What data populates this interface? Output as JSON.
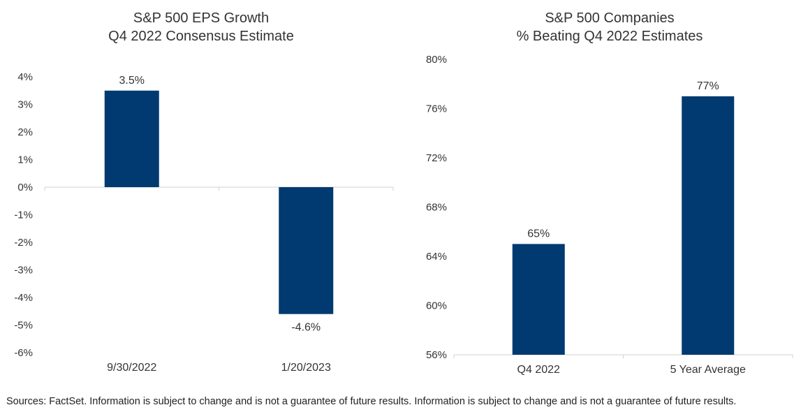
{
  "source_note": "Sources: FactSet. Information is subject to change and is not a guarantee of future results. Information is subject to change and is not a guarantee of future results.",
  "colors": {
    "bar": "#003a70",
    "axis": "#d0d0d0",
    "text": "#333333"
  },
  "chart_data": [
    {
      "type": "bar",
      "title": "S&P 500 EPS Growth",
      "subtitle": "Q4 2022 Consensus Estimate",
      "categories": [
        "9/30/2022",
        "1/20/2023"
      ],
      "values": [
        3.5,
        -4.6
      ],
      "value_labels": [
        "3.5%",
        "-4.6%"
      ],
      "ylim": [
        -6,
        4
      ],
      "yticks": [
        4,
        3,
        2,
        1,
        0,
        -1,
        -2,
        -3,
        -4,
        -5,
        -6
      ],
      "ytick_labels": [
        "4%",
        "3%",
        "2%",
        "1%",
        "0%",
        "-1%",
        "-2%",
        "-3%",
        "-4%",
        "-5%",
        "-6%"
      ],
      "xlabel": "",
      "ylabel": "",
      "grid": false,
      "legend": "none"
    },
    {
      "type": "bar",
      "title": "S&P 500 Companies",
      "subtitle": "% Beating Q4 2022  Estimates",
      "categories": [
        "Q4 2022",
        "5 Year Average"
      ],
      "values": [
        65,
        77
      ],
      "value_labels": [
        "65%",
        "77%"
      ],
      "ylim": [
        56,
        80
      ],
      "yticks": [
        80,
        76,
        72,
        68,
        64,
        60,
        56
      ],
      "ytick_labels": [
        "80%",
        "76%",
        "72%",
        "68%",
        "64%",
        "60%",
        "56%"
      ],
      "xlabel": "",
      "ylabel": "",
      "grid": false,
      "legend": "none"
    }
  ]
}
